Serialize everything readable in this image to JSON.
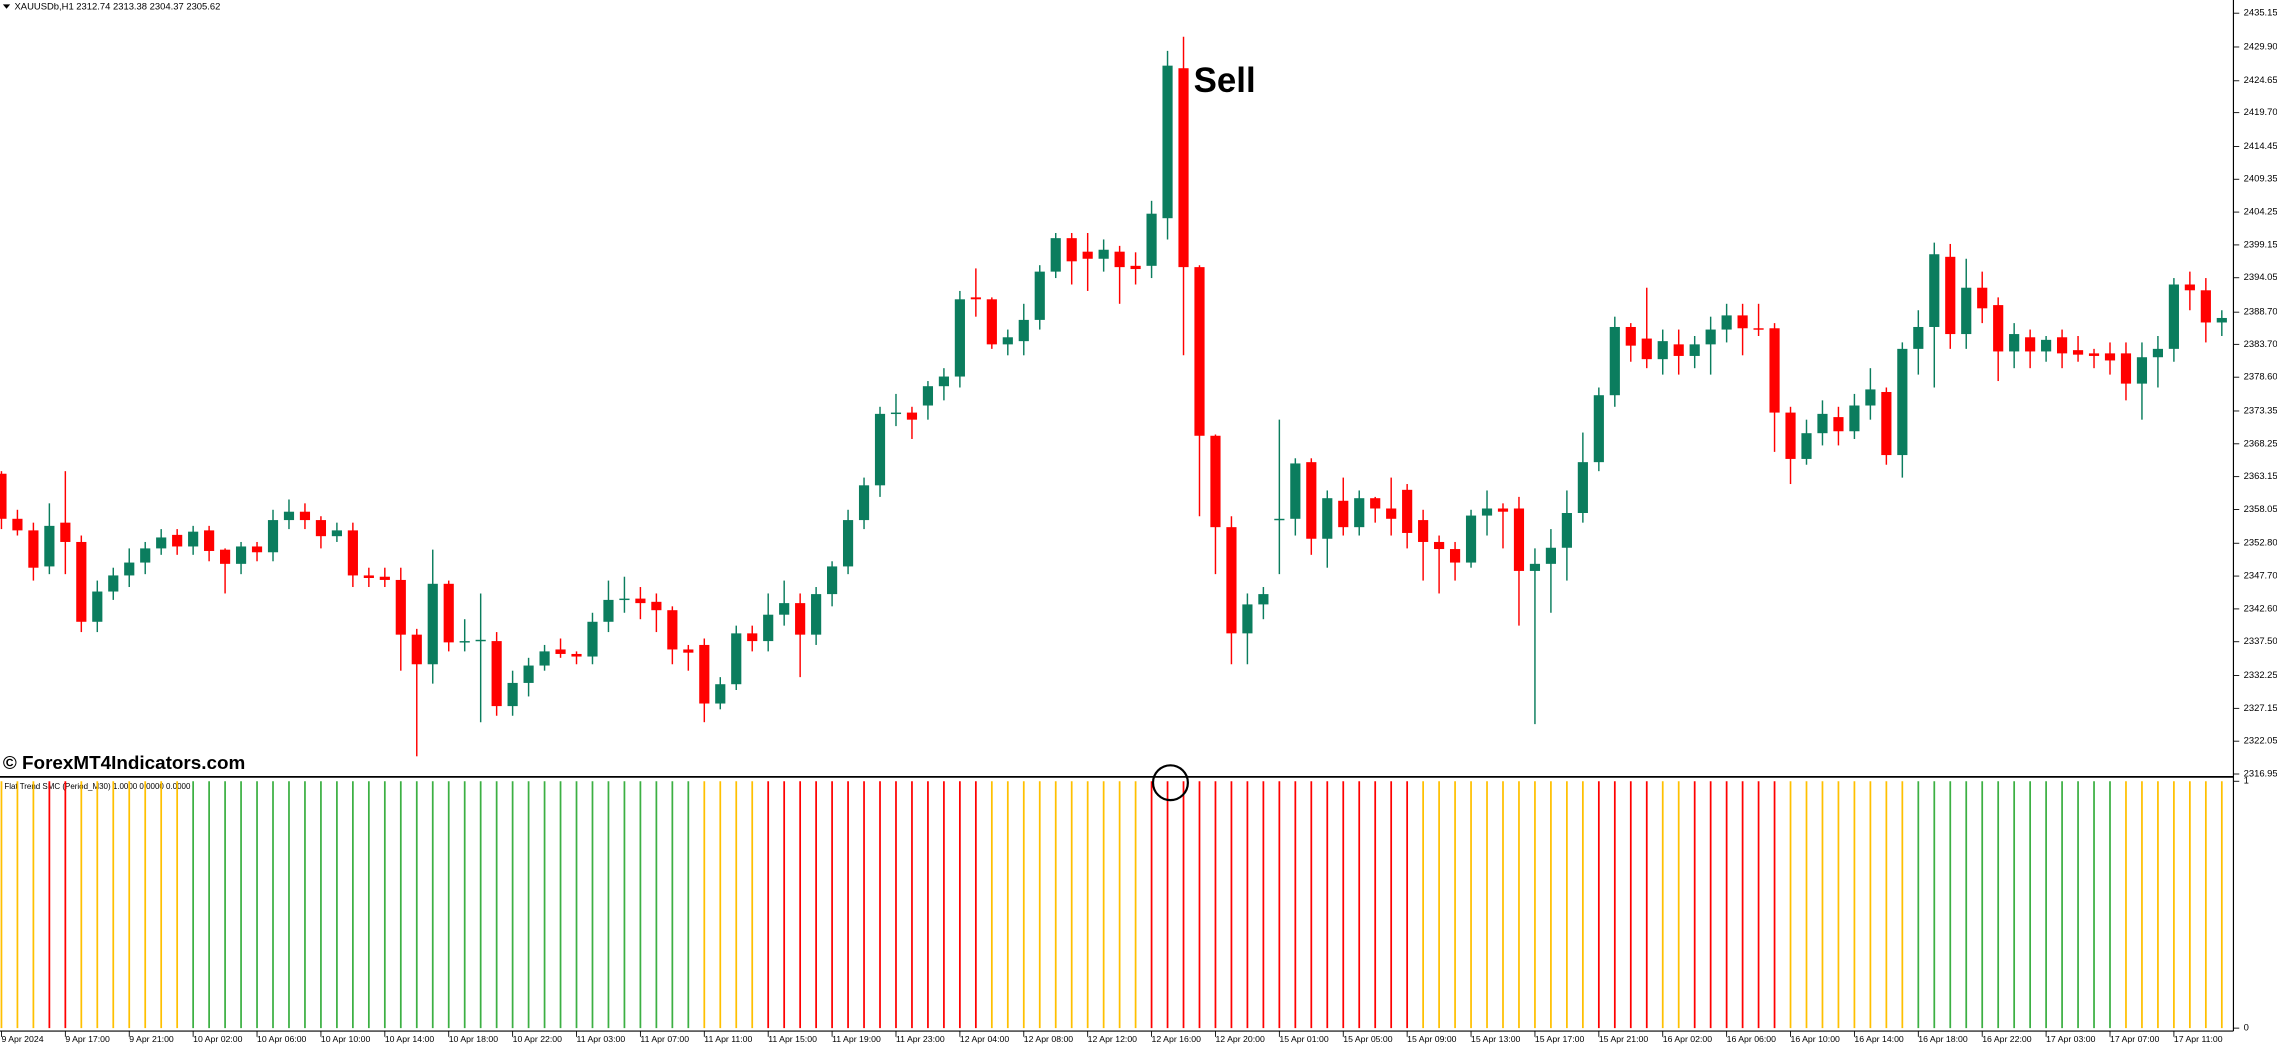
{
  "watermark": "© ForexMT4Indicators.com",
  "chart_data": [
    {
      "type": "candlestick",
      "title": "XAUUSDb,H1 2312.74 2313.38 2304.37 2305.62",
      "annotation": "Sell",
      "up_color": "#0b7d5e",
      "down_color": "#ff0000",
      "ylim": [
        2316.5,
        2437.2
      ],
      "yticks": [
        2435.15,
        {
          "value": 2429.9,
          "label": "2429.90"
        },
        2424.65,
        {
          "value": 2419.7,
          "label": "2419.70"
        },
        2414.45,
        2409.35,
        2404.25,
        2399.15,
        2394.05,
        {
          "value": 2388.7,
          "label": "2388.70"
        },
        {
          "value": 2383.7,
          "label": "2383.70"
        },
        {
          "value": 2378.6,
          "label": "2378.60"
        },
        2373.35,
        2368.25,
        2363.15,
        2358.05,
        {
          "value": 2352.8,
          "label": "2352.80"
        },
        {
          "value": 2347.7,
          "label": "2347.70"
        },
        {
          "value": 2342.6,
          "label": "2342.60"
        },
        {
          "value": 2337.5,
          "label": "2337.50"
        },
        2332.25,
        2327.15,
        2322.05,
        2316.95
      ],
      "categories": [
        "9 Apr 2024",
        null,
        null,
        null,
        "9 Apr 17:00",
        null,
        null,
        null,
        "9 Apr 21:00",
        null,
        null,
        null,
        "10 Apr 02:00",
        null,
        null,
        null,
        "10 Apr 06:00",
        null,
        null,
        null,
        "10 Apr 10:00",
        null,
        null,
        null,
        "10 Apr 14:00",
        null,
        null,
        null,
        "10 Apr 18:00",
        null,
        null,
        null,
        "10 Apr 22:00",
        null,
        null,
        null,
        "11 Apr 03:00",
        null,
        null,
        null,
        "11 Apr 07:00",
        null,
        null,
        null,
        "11 Apr 11:00",
        null,
        null,
        null,
        "11 Apr 15:00",
        null,
        null,
        null,
        "11 Apr 19:00",
        null,
        null,
        null,
        "11 Apr 23:00",
        null,
        null,
        null,
        "12 Apr 04:00",
        null,
        null,
        null,
        "12 Apr 08:00",
        null,
        null,
        null,
        "12 Apr 12:00",
        null,
        null,
        null,
        "12 Apr 16:00",
        null,
        null,
        null,
        "12 Apr 20:00",
        null,
        null,
        null,
        "15 Apr 01:00",
        null,
        null,
        null,
        "15 Apr 05:00",
        null,
        null,
        null,
        "15 Apr 09:00",
        null,
        null,
        null,
        "15 Apr 13:00",
        null,
        null,
        null,
        "15 Apr 17:00",
        null,
        null,
        null,
        "15 Apr 21:00",
        null,
        null,
        null,
        "16 Apr 02:00",
        null,
        null,
        null,
        "16 Apr 06:00",
        null,
        null,
        null,
        "16 Apr 10:00",
        null,
        null,
        null,
        "16 Apr 14:00",
        null,
        null,
        null,
        "16 Apr 18:00",
        null,
        null,
        null,
        "16 Apr 22:00",
        null,
        null,
        null,
        "17 Apr 03:00",
        null,
        null,
        null,
        "17 Apr 07:00",
        null,
        null,
        null,
        "17 Apr 11:00",
        null,
        null,
        null
      ],
      "open": [
        2363.6,
        2356.6,
        2354.8,
        2349.2,
        2356,
        2353,
        2340.6,
        2345.3,
        2347.8,
        2349.8,
        2352,
        2354.1,
        2352.3,
        2354.8,
        2351.8,
        2349.6,
        2352.3,
        2351.4,
        2356.4,
        2357.7,
        2356.4,
        2353.9,
        2354.8,
        2347.8,
        2347.6,
        2347.1,
        2338.6,
        2334,
        2346.5,
        2337.4,
        2337.6,
        2337.6,
        2327.5,
        2331.1,
        2333.8,
        2336.3,
        2335.6,
        2335.2,
        2340.6,
        2344,
        2344.2,
        2343.7,
        2342.4,
        2336.3,
        2337,
        2327.9,
        2330.9,
        2338.8,
        2337.6,
        2341.7,
        2343.5,
        2338.6,
        2344.9,
        2349.2,
        2356.4,
        2361.8,
        2372.9,
        2373.1,
        2374.2,
        2377.2,
        2378.7,
        2391,
        2390.7,
        2383.7,
        2384.2,
        2387.5,
        2395,
        2400.2,
        2398.1,
        2397,
        2398.1,
        2395.9,
        2395.9,
        2403.3,
        2426.6,
        2395.7,
        2369.5,
        2355.3,
        2338.8,
        2343.3,
        2356.4,
        2356.6,
        2365.4,
        2353.5,
        2359.4,
        2355.3,
        2359.8,
        2358.2,
        2361.1,
        2356.4,
        2353,
        2351.9,
        2349.8,
        2357.1,
        2358.2,
        2358.2,
        2348.5,
        2349.6,
        2352.1,
        2357.5,
        2365.4,
        2375.8,
        2386.4,
        2384.6,
        2381.4,
        2383.7,
        2381.9,
        2383.7,
        2386,
        2388.2,
        2386.2,
        2386.2,
        2373.1,
        2365.9,
        2369.9,
        2372.4,
        2370.2,
        2374.2,
        2376.3,
        2366.5,
        2383,
        2386.4,
        2397.3,
        2385.3,
        2392.5,
        2389.8,
        2382.6,
        2384.8,
        2382.6,
        2384.8,
        2382.8,
        2382.3,
        2382.3,
        2382.3,
        2377.6,
        2381.7,
        2383,
        2393,
        2392.1,
        2387.1
      ],
      "high": [
        2364,
        2358,
        2356,
        2359,
        2364,
        2354,
        2347,
        2349,
        2352,
        2353,
        2355,
        2355,
        2355.5,
        2355.5,
        2352,
        2353,
        2353,
        2358,
        2359.6,
        2359,
        2357,
        2356,
        2356,
        2349,
        2349,
        2349,
        2339.5,
        2351.8,
        2347,
        2341,
        2345,
        2339,
        2333,
        2335,
        2337,
        2338,
        2336,
        2342,
        2347,
        2347.6,
        2346,
        2345,
        2343,
        2337,
        2338,
        2332,
        2340,
        2340,
        2345,
        2347,
        2345,
        2346,
        2350,
        2358,
        2363,
        2374,
        2376,
        2374,
        2378,
        2380,
        2392,
        2395.5,
        2391,
        2386,
        2390,
        2396,
        2401,
        2401,
        2401,
        2400,
        2399,
        2398,
        2406,
        2429.3,
        2431.5,
        2396,
        2369.7,
        2357,
        2345,
        2346,
        2372,
        2366,
        2366,
        2361,
        2363,
        2361,
        2360,
        2363,
        2362,
        2358,
        2354,
        2353,
        2358,
        2361,
        2359,
        2360,
        2352,
        2355,
        2361,
        2370,
        2377,
        2388,
        2387,
        2392.5,
        2386,
        2386,
        2385,
        2388,
        2390,
        2390,
        2390,
        2387,
        2374,
        2372,
        2375,
        2374,
        2376,
        2380,
        2377,
        2384,
        2389,
        2399.5,
        2399.3,
        2397,
        2395,
        2391,
        2387,
        2386,
        2385,
        2386,
        2385,
        2383,
        2384,
        2384,
        2384,
        2385,
        2394,
        2395,
        2394,
        2389
      ],
      "low": [
        2355,
        2354,
        2347,
        2348,
        2348,
        2339,
        2339,
        2344,
        2346,
        2348,
        2351,
        2351,
        2351,
        2350,
        2345,
        2348,
        2350,
        2350,
        2355,
        2355,
        2352,
        2353,
        2346,
        2346,
        2346,
        2333,
        2319.7,
        2331,
        2336,
        2336,
        2325,
        2326,
        2326,
        2329,
        2333,
        2335,
        2334,
        2334,
        2339,
        2342,
        2341,
        2339,
        2334,
        2333,
        2325,
        2327,
        2330,
        2336,
        2336,
        2340,
        2332,
        2337,
        2343,
        2348,
        2355,
        2360,
        2371,
        2369,
        2372,
        2375,
        2377,
        2388,
        2383,
        2382,
        2382,
        2386,
        2394,
        2393,
        2392,
        2395,
        2390,
        2393,
        2394,
        2400,
        2382,
        2357,
        2348,
        2334,
        2334,
        2341,
        2348,
        2354,
        2351,
        2349,
        2354,
        2354,
        2356,
        2354,
        2352,
        2347,
        2345,
        2347,
        2349,
        2354,
        2352,
        2340,
        2324.7,
        2342,
        2347,
        2356,
        2364,
        2374,
        2381,
        2380,
        2379,
        2379,
        2380,
        2379,
        2384,
        2382,
        2385,
        2367,
        2362,
        2365,
        2368,
        2368,
        2369,
        2372,
        2365,
        2363,
        2379,
        2377,
        2383,
        2383,
        2387,
        2378,
        2380,
        2380,
        2381,
        2380,
        2381,
        2380,
        2379,
        2375,
        2372,
        2377,
        2381,
        2389,
        2384,
        2385
      ],
      "close": [
        2356.6,
        2354.8,
        2349,
        2355.5,
        2353,
        2340.6,
        2345.3,
        2347.8,
        2349.8,
        2352,
        2353.7,
        2352.3,
        2354.6,
        2351.6,
        2349.6,
        2352.3,
        2351.4,
        2356.4,
        2357.7,
        2356.4,
        2353.9,
        2354.8,
        2347.8,
        2347.4,
        2347.1,
        2338.6,
        2334,
        2346.5,
        2337.4,
        2337.6,
        2337.8,
        2327.5,
        2331.1,
        2333.8,
        2336,
        2335.6,
        2335.2,
        2340.6,
        2344,
        2344.2,
        2343.5,
        2342.4,
        2336.3,
        2335.8,
        2327.9,
        2330.9,
        2338.8,
        2337.6,
        2341.7,
        2343.5,
        2338.6,
        2344.9,
        2349.2,
        2356.4,
        2361.8,
        2372.9,
        2373.1,
        2372,
        2377.2,
        2378.7,
        2390.7,
        2390.7,
        2383.7,
        2384.8,
        2387.5,
        2395,
        2400.2,
        2396.6,
        2397,
        2398.4,
        2395.7,
        2395.4,
        2404,
        2427,
        2395.7,
        2369.5,
        2355.3,
        2338.8,
        2343.3,
        2344.9,
        2356.6,
        2365.2,
        2353.5,
        2359.8,
        2355.3,
        2359.8,
        2358.2,
        2356.6,
        2354.4,
        2353,
        2351.9,
        2349.8,
        2357.1,
        2358.2,
        2357.7,
        2348.5,
        2349.6,
        2352.1,
        2357.5,
        2365.4,
        2375.8,
        2386.4,
        2383.5,
        2381.4,
        2384.2,
        2381.9,
        2383.7,
        2386,
        2388.2,
        2386.2,
        2386,
        2373.1,
        2365.9,
        2369.9,
        2372.9,
        2370.2,
        2374.2,
        2376.7,
        2366.5,
        2383,
        2386.4,
        2397.7,
        2385.3,
        2392.5,
        2389.3,
        2382.6,
        2385.3,
        2382.6,
        2384.4,
        2382.3,
        2382.1,
        2381.9,
        2381.2,
        2377.6,
        2381.7,
        2383,
        2393,
        2392.1,
        2387.1,
        2387.8
      ]
    },
    {
      "type": "bar",
      "title": "Flat Trend SMC (Period_M30) 1.0000 0.0000 0.0000",
      "ylim": [
        0,
        1
      ],
      "yticks": [
        0,
        1
      ],
      "values": [
        1,
        1,
        1,
        1,
        1,
        1,
        1,
        1,
        1,
        1,
        1,
        1,
        1,
        1,
        1,
        1,
        1,
        1,
        1,
        1,
        1,
        1,
        1,
        1,
        1,
        1,
        1,
        1,
        1,
        1,
        1,
        1,
        1,
        1,
        1,
        1,
        1,
        1,
        1,
        1,
        1,
        1,
        1,
        1,
        1,
        1,
        1,
        1,
        1,
        1,
        1,
        1,
        1,
        1,
        1,
        1,
        1,
        1,
        1,
        1,
        1,
        1,
        1,
        1,
        1,
        1,
        1,
        1,
        1,
        1,
        1,
        1,
        1,
        1,
        1,
        1,
        1,
        1,
        1,
        1,
        1,
        1,
        1,
        1,
        1,
        1,
        1,
        1,
        1,
        1,
        1,
        1,
        1,
        1,
        1,
        1,
        1,
        1,
        1,
        1,
        1,
        1,
        1,
        1,
        1,
        1,
        1,
        1,
        1,
        1,
        1,
        1,
        1,
        1,
        1,
        1,
        1,
        1,
        1,
        1,
        1,
        1,
        1,
        1,
        1,
        1,
        1,
        1,
        1,
        1,
        1,
        1,
        1,
        1,
        1,
        1,
        1,
        1,
        1,
        1
      ],
      "colors": [
        "#ffc000",
        "#ffc000",
        "#ffc000",
        "#ff0000",
        "#ff0000",
        "#ffc000",
        "#ffc000",
        "#ffc000",
        "#ffc000",
        "#ffc000",
        "#ffc000",
        "#ffc000",
        "#3cb043",
        "#3cb043",
        "#3cb043",
        "#3cb043",
        "#3cb043",
        "#3cb043",
        "#3cb043",
        "#3cb043",
        "#3cb043",
        "#3cb043",
        "#3cb043",
        "#3cb043",
        "#3cb043",
        "#3cb043",
        "#3cb043",
        "#3cb043",
        "#3cb043",
        "#3cb043",
        "#3cb043",
        "#3cb043",
        "#3cb043",
        "#3cb043",
        "#3cb043",
        "#3cb043",
        "#3cb043",
        "#3cb043",
        "#3cb043",
        "#3cb043",
        "#3cb043",
        "#3cb043",
        "#3cb043",
        "#3cb043",
        "#ffc000",
        "#ffc000",
        "#ffc000",
        "#ffc000",
        "#ff0000",
        "#ff0000",
        "#ff0000",
        "#ff0000",
        "#ff0000",
        "#ff0000",
        "#ff0000",
        "#ff0000",
        "#ff0000",
        "#ff0000",
        "#ff0000",
        "#ff0000",
        "#ff0000",
        "#ff0000",
        "#ffc000",
        "#ffc000",
        "#ffc000",
        "#ffc000",
        "#ffc000",
        "#ffc000",
        "#ffc000",
        "#ffc000",
        "#ffc000",
        "#ffc000",
        "#ff0000",
        "#ff0000",
        "#ff0000",
        "#ff0000",
        "#ff0000",
        "#ff0000",
        "#ff0000",
        "#ff0000",
        "#ff0000",
        "#ff0000",
        "#ff0000",
        "#ff0000",
        "#ff0000",
        "#ff0000",
        "#ff0000",
        "#ff0000",
        "#ff0000",
        "#ffc000",
        "#ffc000",
        "#ffc000",
        "#ffc000",
        "#ffc000",
        "#ffc000",
        "#ffc000",
        "#ffc000",
        "#ffc000",
        "#ffc000",
        "#ffc000",
        "#ff0000",
        "#ff0000",
        "#ff0000",
        "#ff0000",
        "#ffc000",
        "#ffc000",
        "#ff0000",
        "#ff0000",
        "#ff0000",
        "#ff0000",
        "#ff0000",
        "#ff0000",
        "#ffc000",
        "#ffc000",
        "#ffc000",
        "#ffc000",
        "#ffc000",
        "#ffc000",
        "#ffc000",
        "#ffc000",
        "#3cb043",
        "#3cb043",
        "#3cb043",
        "#3cb043",
        "#3cb043",
        "#3cb043",
        "#3cb043",
        "#3cb043",
        "#3cb043",
        "#3cb043",
        "#3cb043",
        "#3cb043",
        "#3cb043",
        "#ffc000",
        "#ffc000",
        "#ffc000",
        "#ffc000",
        "#ffc000",
        "#ffc000",
        "#ffc000"
      ]
    }
  ]
}
